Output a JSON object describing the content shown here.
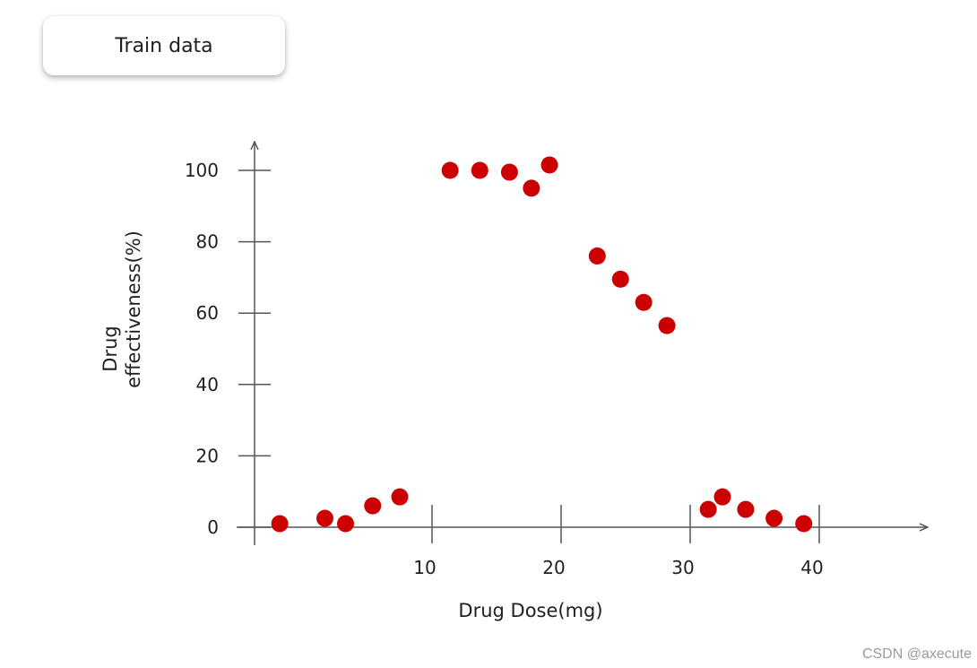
{
  "badge": {
    "label": "Train data"
  },
  "watermark": "CSDN @axecute",
  "chart_data": {
    "type": "scatter",
    "xlabel": "Drug Dose(mg)",
    "ylabel_lines": [
      "Drug",
      "effectiveness(%)"
    ],
    "x_ticks": [
      10,
      20,
      30,
      40
    ],
    "y_ticks": [
      0,
      20,
      40,
      60,
      80,
      100
    ],
    "xlim": [
      -3.5,
      50
    ],
    "ylim": [
      0,
      108
    ],
    "grid": false,
    "marker_color": "#cc0000",
    "axis_color": "#555555",
    "points": [
      {
        "x": -1.8,
        "y": 1
      },
      {
        "x": 1.7,
        "y": 2.5
      },
      {
        "x": 3.3,
        "y": 1
      },
      {
        "x": 5.4,
        "y": 6
      },
      {
        "x": 7.5,
        "y": 8.5
      },
      {
        "x": 11.4,
        "y": 100
      },
      {
        "x": 13.7,
        "y": 100
      },
      {
        "x": 16,
        "y": 99.5
      },
      {
        "x": 17.7,
        "y": 95
      },
      {
        "x": 19.1,
        "y": 101.5
      },
      {
        "x": 22.8,
        "y": 76
      },
      {
        "x": 24.6,
        "y": 69.5
      },
      {
        "x": 26.4,
        "y": 63
      },
      {
        "x": 28.2,
        "y": 56.5
      },
      {
        "x": 31.4,
        "y": 5
      },
      {
        "x": 32.5,
        "y": 8.5
      },
      {
        "x": 34.3,
        "y": 5
      },
      {
        "x": 36.5,
        "y": 2.5
      },
      {
        "x": 38.8,
        "y": 1
      }
    ]
  }
}
